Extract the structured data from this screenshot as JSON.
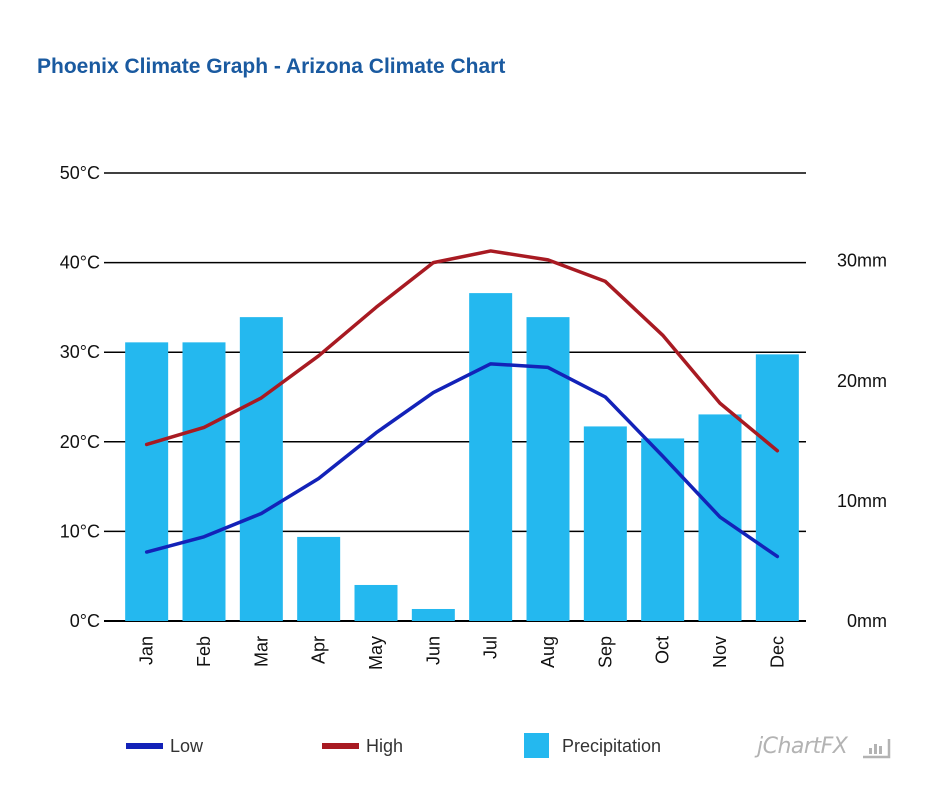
{
  "title": "Phoenix Climate Graph - Arizona Climate Chart",
  "chart_data": {
    "type": "bar+line",
    "categories": [
      "Jan",
      "Feb",
      "Mar",
      "Apr",
      "May",
      "Jun",
      "Jul",
      "Aug",
      "Sep",
      "Oct",
      "Nov",
      "Dec"
    ],
    "series": [
      {
        "name": "Low",
        "type": "line",
        "axis": "left",
        "unit": "°C",
        "values": [
          7.7,
          9.4,
          12.0,
          15.9,
          21.0,
          25.5,
          28.7,
          28.3,
          25.0,
          18.4,
          11.6,
          7.2
        ]
      },
      {
        "name": "High",
        "type": "line",
        "axis": "left",
        "unit": "°C",
        "values": [
          19.7,
          21.6,
          24.9,
          29.6,
          35.0,
          40.0,
          41.3,
          40.3,
          37.9,
          31.9,
          24.3,
          19.0
        ]
      },
      {
        "name": "Precipitation",
        "type": "bar",
        "axis": "right",
        "unit": "mm",
        "values": [
          23.2,
          23.2,
          25.3,
          7.0,
          3.0,
          1.0,
          27.3,
          25.3,
          16.2,
          15.2,
          17.2,
          22.2
        ]
      }
    ],
    "yleft": {
      "ticks": [
        "0°C",
        "10°C",
        "20°C",
        "30°C",
        "40°C",
        "50°C"
      ],
      "lim": [
        0,
        50
      ]
    },
    "yright": {
      "ticks": [
        "0mm",
        "10mm",
        "20mm",
        "30mm"
      ],
      "lim": [
        0,
        37.3
      ]
    },
    "grid": true,
    "legend": "bottom"
  },
  "colors": {
    "low": "#1322b8",
    "high": "#a81a22",
    "precip": "#24b8ef",
    "title": "#1a5aa0"
  },
  "brand": "jChartFX"
}
